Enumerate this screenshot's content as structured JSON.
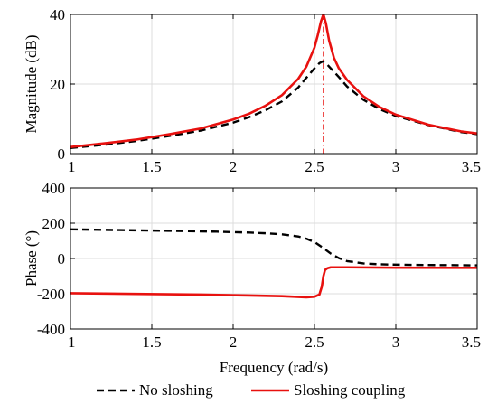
{
  "chart_data": [
    {
      "type": "line",
      "ylabel": "Magnitude (dB)",
      "xlabel": "",
      "xlim": [
        1,
        3.5
      ],
      "ylim": [
        0,
        40
      ],
      "xticks": [
        "1",
        "1.5",
        "2",
        "2.5",
        "3",
        "3.5"
      ],
      "yticks": [
        "0",
        "20",
        "40"
      ],
      "grid": true,
      "series": [
        {
          "name": "No sloshing",
          "color": "#000000",
          "dash": "dashed",
          "x": [
            1.0,
            1.2,
            1.4,
            1.6,
            1.8,
            2.0,
            2.1,
            2.2,
            2.3,
            2.4,
            2.45,
            2.5,
            2.53,
            2.55,
            2.57,
            2.6,
            2.65,
            2.7,
            2.8,
            2.9,
            3.0,
            3.2,
            3.4,
            3.5
          ],
          "values": [
            1.6,
            2.5,
            3.6,
            5.0,
            6.6,
            8.9,
            10.5,
            12.5,
            15.0,
            19.0,
            21.8,
            24.5,
            26.0,
            26.5,
            26.0,
            24.5,
            22.0,
            19.3,
            15.5,
            12.8,
            10.8,
            8.2,
            6.2,
            5.6
          ]
        },
        {
          "name": "Sloshing coupling",
          "color": "#e8110f",
          "dash": "solid",
          "x": [
            1.0,
            1.2,
            1.4,
            1.6,
            1.8,
            2.0,
            2.1,
            2.2,
            2.3,
            2.4,
            2.45,
            2.5,
            2.52,
            2.54,
            2.555,
            2.57,
            2.59,
            2.62,
            2.65,
            2.7,
            2.8,
            2.9,
            3.0,
            3.2,
            3.4,
            3.5
          ],
          "values": [
            1.9,
            2.9,
            4.0,
            5.5,
            7.2,
            9.8,
            11.5,
            13.8,
            16.8,
            21.5,
            25.0,
            30.5,
            34.0,
            38.0,
            40.0,
            37.5,
            32.5,
            27.5,
            24.5,
            21.2,
            16.5,
            13.4,
            11.2,
            8.3,
            6.4,
            5.8
          ]
        }
      ]
    },
    {
      "type": "line",
      "ylabel": "Phase (°)",
      "xlabel": "Frequency (rad/s)",
      "xlim": [
        1,
        3.5
      ],
      "ylim": [
        -400,
        400
      ],
      "xticks": [
        "1",
        "1.5",
        "2",
        "2.5",
        "3",
        "3.5"
      ],
      "yticks": [
        "-400",
        "-200",
        "0",
        "200",
        "400"
      ],
      "grid": true,
      "series": [
        {
          "name": "No sloshing",
          "color": "#000000",
          "dash": "dashed",
          "x": [
            1.0,
            1.3,
            1.6,
            1.9,
            2.1,
            2.2,
            2.3,
            2.4,
            2.45,
            2.5,
            2.55,
            2.6,
            2.65,
            2.7,
            2.8,
            2.9,
            3.0,
            3.2,
            3.4,
            3.5
          ],
          "values": [
            165,
            161,
            157,
            152,
            147,
            143,
            137,
            125,
            112,
            93,
            62,
            28,
            2,
            -15,
            -28,
            -33,
            -35,
            -37,
            -38,
            -39
          ]
        },
        {
          "name": "Sloshing coupling",
          "color": "#e8110f",
          "dash": "solid",
          "x": [
            1.0,
            1.4,
            1.8,
            2.1,
            2.3,
            2.45,
            2.5,
            2.53,
            2.545,
            2.555,
            2.565,
            2.58,
            2.6,
            2.7,
            3.0,
            3.5
          ],
          "values": [
            -197,
            -201,
            -205,
            -210,
            -214,
            -220,
            -217,
            -205,
            -160,
            -100,
            -65,
            -55,
            -50,
            -50,
            -52,
            -53
          ]
        }
      ]
    }
  ],
  "legend": {
    "position": "bottom",
    "items": [
      {
        "label": "No sloshing",
        "color": "#000000",
        "dash": "dashed"
      },
      {
        "label": "Sloshing coupling",
        "color": "#e8110f",
        "dash": "solid"
      }
    ]
  },
  "reference_line": {
    "x": 2.555,
    "color": "#e8110f",
    "dash": "dashdot"
  }
}
